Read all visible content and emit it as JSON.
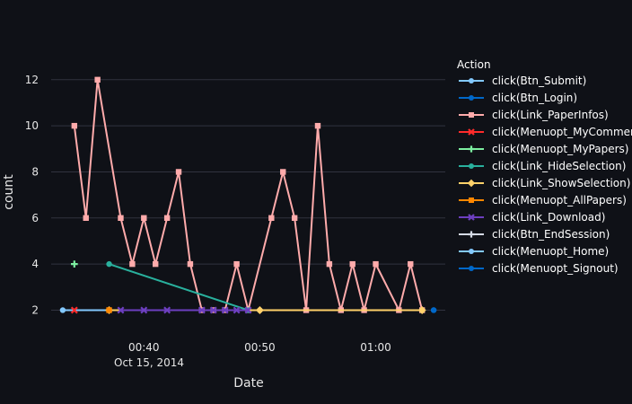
{
  "chart_data": {
    "type": "line",
    "xlabel": "Date",
    "ylabel": "count",
    "x_tick_labels": [
      "00:40",
      "00:50",
      "01:00"
    ],
    "x_tick_date_label": "Oct 15, 2014",
    "y_ticks": [
      2,
      4,
      6,
      8,
      10,
      12
    ],
    "x_range": [
      "2014-10-15 00:32",
      "2014-10-15 01:06"
    ],
    "ylim": [
      1.2,
      13.2
    ],
    "grid": true,
    "legend_title": "Action",
    "legend_position": "right",
    "series": [
      {
        "name": "click(Btn_Submit)",
        "color": "#83c9ff",
        "marker": "circle",
        "points": [
          [
            "2014-10-15 00:33",
            2
          ],
          [
            "2014-10-15 00:50",
            2
          ]
        ]
      },
      {
        "name": "click(Btn_Login)",
        "color": "#0068c9",
        "marker": "circle",
        "points": [
          [
            "2014-10-15 01:05",
            2
          ]
        ]
      },
      {
        "name": "click(Link_PaperInfos)",
        "color": "#ffabab",
        "marker": "square",
        "points": [
          [
            "2014-10-15 00:34",
            10
          ],
          [
            "2014-10-15 00:35",
            6
          ],
          [
            "2014-10-15 00:36",
            12
          ],
          [
            "2014-10-15 00:38",
            6
          ],
          [
            "2014-10-15 00:39",
            4
          ],
          [
            "2014-10-15 00:40",
            6
          ],
          [
            "2014-10-15 00:41",
            4
          ],
          [
            "2014-10-15 00:42",
            6
          ],
          [
            "2014-10-15 00:43",
            8
          ],
          [
            "2014-10-15 00:44",
            4
          ],
          [
            "2014-10-15 00:45",
            2
          ],
          [
            "2014-10-15 00:46",
            2
          ],
          [
            "2014-10-15 00:47",
            2
          ],
          [
            "2014-10-15 00:48",
            4
          ],
          [
            "2014-10-15 00:49",
            2
          ],
          [
            "2014-10-15 00:51",
            6
          ],
          [
            "2014-10-15 00:52",
            8
          ],
          [
            "2014-10-15 00:53",
            6
          ],
          [
            "2014-10-15 00:54",
            2
          ],
          [
            "2014-10-15 00:55",
            10
          ],
          [
            "2014-10-15 00:56",
            4
          ],
          [
            "2014-10-15 00:57",
            2
          ],
          [
            "2014-10-15 00:58",
            4
          ],
          [
            "2014-10-15 00:59",
            2
          ],
          [
            "2014-10-15 01:00",
            4
          ],
          [
            "2014-10-15 01:02",
            2
          ],
          [
            "2014-10-15 01:03",
            4
          ],
          [
            "2014-10-15 01:04",
            2
          ]
        ]
      },
      {
        "name": "click(Menuopt_MyComments)",
        "color": "#ff2b2b",
        "marker": "x",
        "points": [
          [
            "2014-10-15 00:34",
            2
          ]
        ]
      },
      {
        "name": "click(Menuopt_MyPapers)",
        "color": "#7defa1",
        "marker": "cross",
        "points": [
          [
            "2014-10-15 00:34",
            4
          ]
        ]
      },
      {
        "name": "click(Link_HideSelection)",
        "color": "#29b09d",
        "marker": "circle",
        "points": [
          [
            "2014-10-15 00:37",
            4
          ],
          [
            "2014-10-15 00:49",
            2
          ]
        ]
      },
      {
        "name": "click(Link_ShowSelection)",
        "color": "#ffd16a",
        "marker": "diamond",
        "points": [
          [
            "2014-10-15 00:37",
            2
          ],
          [
            "2014-10-15 00:50",
            2
          ],
          [
            "2014-10-15 01:04",
            2
          ]
        ]
      },
      {
        "name": "click(Menuopt_AllPapers)",
        "color": "#ff8700",
        "marker": "square",
        "points": [
          [
            "2014-10-15 00:37",
            2
          ]
        ]
      },
      {
        "name": "click(Link_Download)",
        "color": "#6d3fc0",
        "marker": "x",
        "points": [
          [
            "2014-10-15 00:38",
            2
          ],
          [
            "2014-10-15 00:40",
            2
          ],
          [
            "2014-10-15 00:42",
            2
          ],
          [
            "2014-10-15 00:45",
            2
          ],
          [
            "2014-10-15 00:46",
            2
          ],
          [
            "2014-10-15 00:47",
            2
          ],
          [
            "2014-10-15 00:48",
            2
          ],
          [
            "2014-10-15 00:49",
            2
          ]
        ]
      },
      {
        "name": "click(Btn_EndSession)",
        "color": "#d5dae5",
        "marker": "cross",
        "points": []
      },
      {
        "name": "click(Menuopt_Home)",
        "color": "#83c9ff",
        "marker": "circle",
        "points": []
      },
      {
        "name": "click(Menuopt_Signout)",
        "color": "#0068c9",
        "marker": "circle",
        "points": [
          [
            "2014-10-15 01:05",
            2
          ]
        ]
      }
    ]
  }
}
